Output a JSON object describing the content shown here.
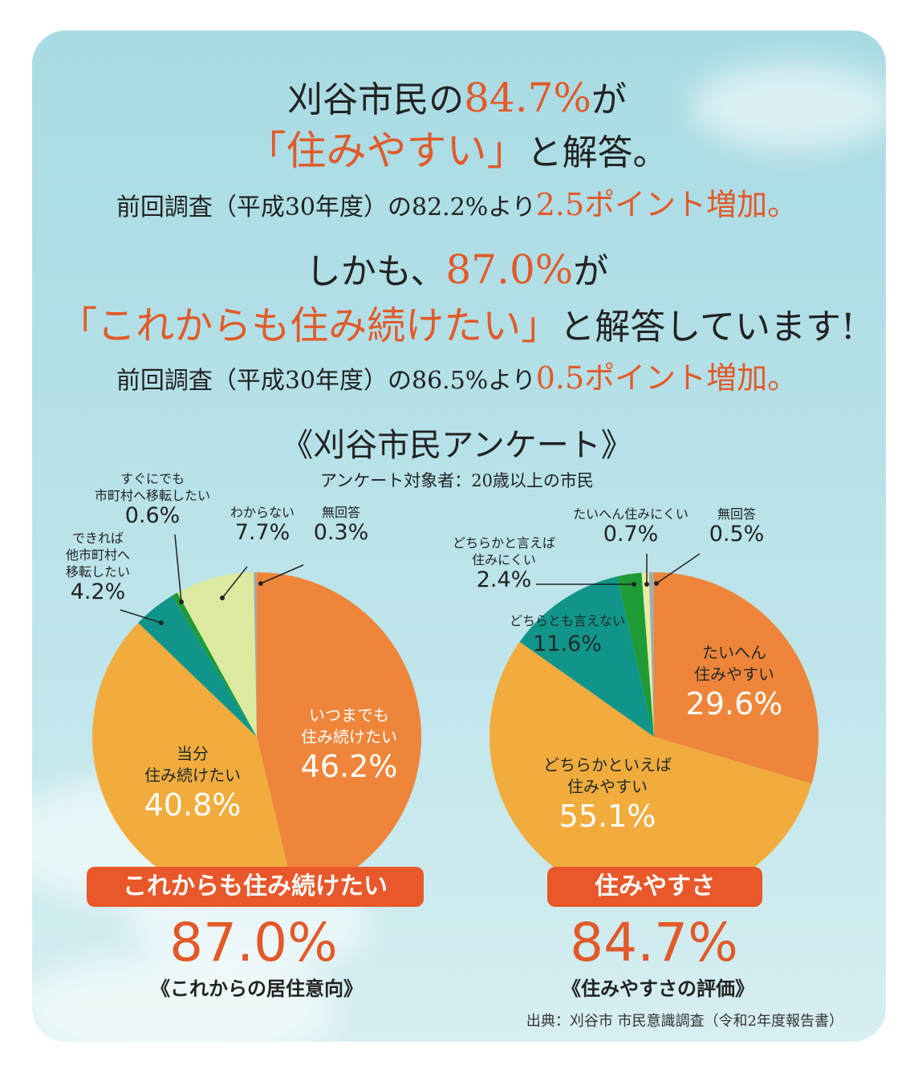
{
  "headline": {
    "l1_a": "刈谷市民の",
    "l1_pct": "84.7%",
    "l1_b": "が",
    "l2_quote": "「住みやすい」",
    "l2_b": "と解答。",
    "l3_a": "前回調査（平成30年度）の82.2%より",
    "l3_pt": "2.5ポイント増加。",
    "l4_a": "しかも、",
    "l4_pct": "87.0%",
    "l4_b": "が",
    "l5_quote": "「これからも住み続けたい」",
    "l5_b": "と解答しています!",
    "l6_a": "前回調査（平成30年度）の86.5%より",
    "l6_pt": "0.5ポイント増加。"
  },
  "survey": {
    "title": "《刈谷市民アンケート》",
    "target": "アンケート対象者：20歳以上の市民"
  },
  "chart_data": [
    {
      "type": "pie",
      "title": "《これからの居住意向》",
      "banner": "これからも住み続けたい",
      "total_pct": "87.0%",
      "slices": [
        {
          "label": "いつまでも住み続けたい",
          "value": 46.2,
          "value_text": "46.2%",
          "color": "#ef853a"
        },
        {
          "label": "当分住み続けたい",
          "value": 40.8,
          "value_text": "40.8%",
          "color": "#f2ac3d"
        },
        {
          "label": "できれば他市町村へ移転したい",
          "value": 4.2,
          "value_text": "4.2%",
          "color": "#11958a"
        },
        {
          "label": "すぐにでも市町村へ移転したい",
          "value": 0.6,
          "value_text": "0.6%",
          "color": "#1f9a35"
        },
        {
          "label": "わからない",
          "value": 7.7,
          "value_text": "7.7%",
          "color": "#dcea9f"
        },
        {
          "label": "無回答",
          "value": 0.3,
          "value_text": "0.3%",
          "color": "#a9a9a9"
        }
      ]
    },
    {
      "type": "pie",
      "title": "《住みやすさの評価》",
      "banner": "住みやすさ",
      "total_pct": "84.7%",
      "slices": [
        {
          "label": "たいへん住みやすい",
          "value": 29.6,
          "value_text": "29.6%",
          "color": "#ef853a"
        },
        {
          "label": "どちらかといえば住みやすい",
          "value": 55.1,
          "value_text": "55.1%",
          "color": "#f2ac3d"
        },
        {
          "label": "どちらとも言えない",
          "value": 11.6,
          "value_text": "11.6%",
          "color": "#11958a"
        },
        {
          "label": "どちらかと言えば住みにくい",
          "value": 2.4,
          "value_text": "2.4%",
          "color": "#1f9a35"
        },
        {
          "label": "たいへん住みにくい",
          "value": 0.7,
          "value_text": "0.7%",
          "color": "#e4efa5"
        },
        {
          "label": "無回答",
          "value": 0.5,
          "value_text": "0.5%",
          "color": "#a9a9a9"
        }
      ]
    }
  ],
  "labels": {
    "c1": {
      "s0_a": "いつまでも",
      "s0_b": "住み続けたい",
      "s1_a": "当分",
      "s1_b": "住み続けたい",
      "s2_a": "できれば",
      "s2_b": "他市町村へ",
      "s2_c": "移転したい",
      "s3_a": "すぐにでも",
      "s3_b": "市町村へ移転したい",
      "s4_a": "わからない",
      "s5_a": "無回答"
    },
    "c2": {
      "s0_a": "たいへん",
      "s0_b": "住みやすい",
      "s1_a": "どちらかといえば",
      "s1_b": "住みやすい",
      "s2_a": "どちらとも言えない",
      "s3_a": "どちらかと言えば",
      "s3_b": "住みにくい",
      "s4_a": "たいへん住みにくい",
      "s5_a": "無回答"
    }
  },
  "source": "出典：刈谷市 市民意識調査（令和2年度報告書）"
}
